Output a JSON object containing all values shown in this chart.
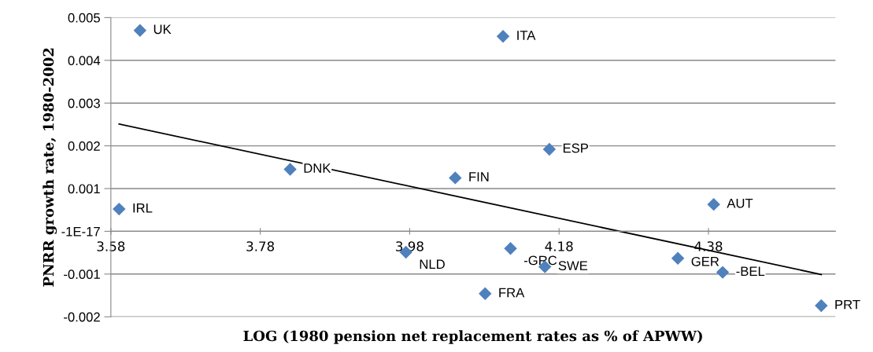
{
  "chart_data": {
    "type": "scatter",
    "xlabel": "LOG (1980 pension net replacement rates as % of APWW)",
    "ylabel": "PNRR growth rate, 1980-2002",
    "series": [
      {
        "color": "#4f81bd",
        "marker": "diamond",
        "x": [
          3.619,
          4.105,
          4.167,
          3.82,
          4.041,
          3.591,
          4.387,
          3.975,
          4.115,
          4.161,
          4.339,
          4.399,
          4.081,
          4.531
        ],
        "values": [
          0.0047,
          0.00456,
          0.00192,
          0.00145,
          0.00125,
          0.00052,
          0.00063,
          -0.00049,
          -0.0004,
          -0.00083,
          -0.00063,
          -0.00096,
          -0.00146,
          -0.00174
        ]
      },
      {
        "type": "line",
        "color": "#000000",
        "marker": "none",
        "x": [
          3.591,
          4.531
        ],
        "values": [
          0.00251,
          -0.00101
        ]
      }
    ],
    "annotations": [
      {
        "text": "UK",
        "x": 3.619,
        "y": 0.0047
      },
      {
        "text": "ITA",
        "x": 4.105,
        "y": 0.00456
      },
      {
        "text": "ESP",
        "x": 4.167,
        "y": 0.00192
      },
      {
        "text": "DNK",
        "x": 3.82,
        "y": 0.00145
      },
      {
        "text": "FIN",
        "x": 4.041,
        "y": 0.00125
      },
      {
        "text": "IRL",
        "x": 3.591,
        "y": 0.00052
      },
      {
        "text": "AUT",
        "x": 4.387,
        "y": 0.00063
      },
      {
        "text": "NLD",
        "x": 3.975,
        "y": -0.00049
      },
      {
        "text": "-GRC",
        "x": 4.115,
        "y": -0.0004
      },
      {
        "text": "SWE",
        "x": 4.161,
        "y": -0.00083
      },
      {
        "text": "GER",
        "x": 4.339,
        "y": -0.00063
      },
      {
        "text": "-BEL",
        "x": 4.399,
        "y": -0.00096
      },
      {
        "text": "FRA",
        "x": 4.081,
        "y": -0.00146
      },
      {
        "text": "PRT",
        "x": 4.531,
        "y": -0.00174
      }
    ],
    "xlim": [
      3.58,
      4.55
    ],
    "xticks": [
      3.58,
      3.78,
      3.98,
      4.18,
      4.38
    ],
    "ylim": [
      -0.002,
      0.005
    ],
    "yticks": [
      0.005,
      0.004,
      0.003,
      0.002,
      0.001,
      {
        "value": 0,
        "label": "-1E-17"
      },
      -0.001,
      -0.002
    ],
    "grid": "y",
    "legend": false
  }
}
